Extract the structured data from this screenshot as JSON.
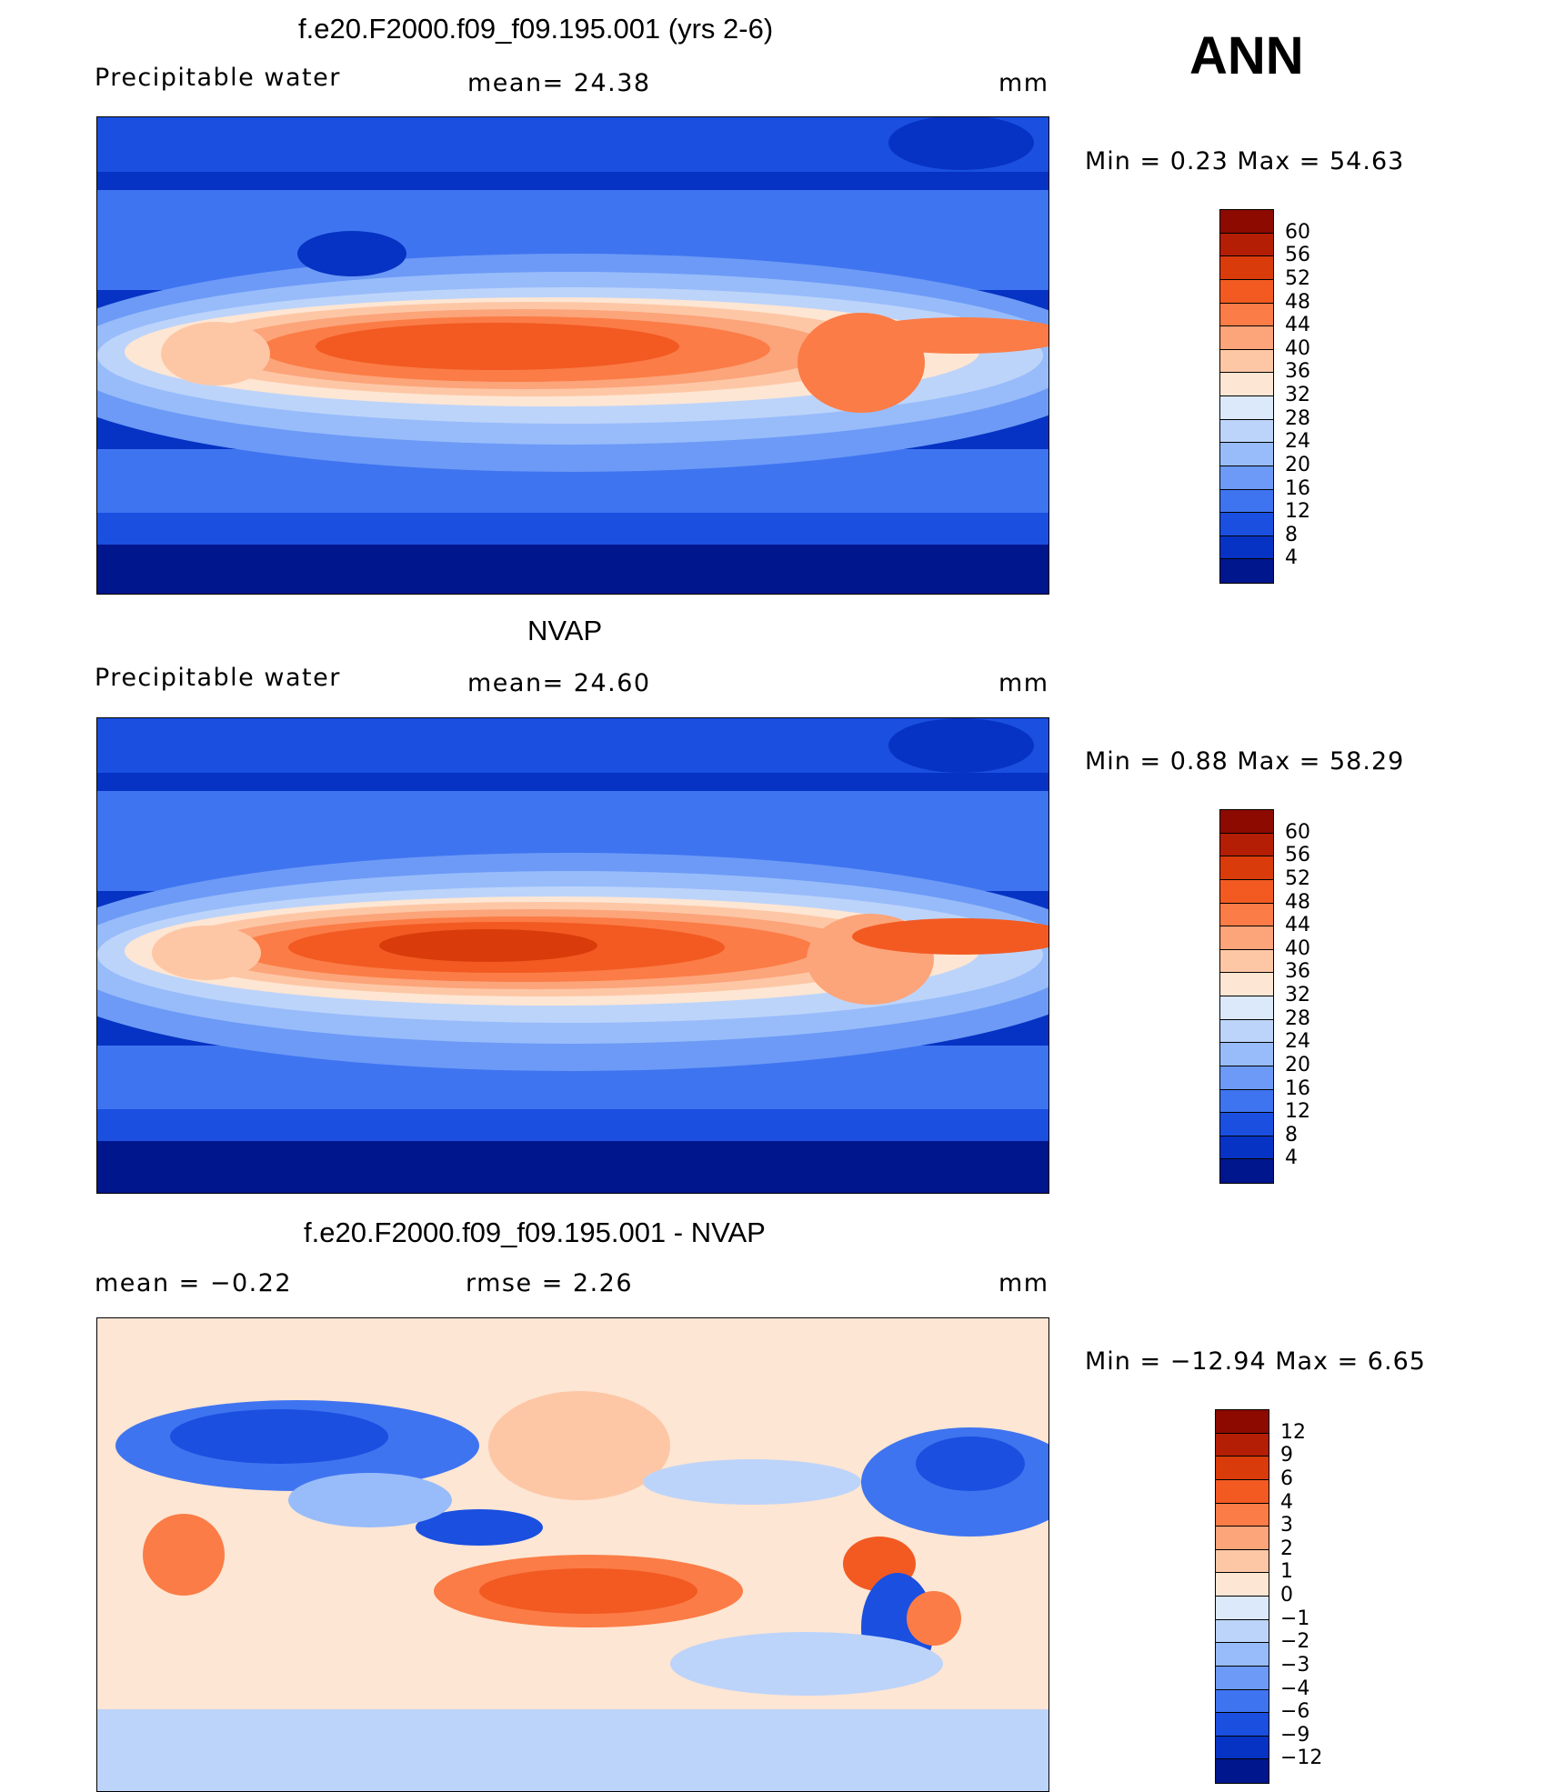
{
  "season": "ANN",
  "panels": [
    {
      "title": "f.e20.F2000.f09_f09.195.001 (yrs 2-6)",
      "left_label": "Precipitable  water",
      "mid_label": "mean=   24.38",
      "units": "mm",
      "minmax": "Min  =     0.23  Max  =    54.63",
      "colorbar": {
        "labels": [
          "60",
          "56",
          "52",
          "48",
          "44",
          "40",
          "36",
          "32",
          "28",
          "24",
          "20",
          "16",
          "12",
          "8",
          "4"
        ],
        "colors": [
          "#8c0a00",
          "#b41e04",
          "#d93b0a",
          "#f25a22",
          "#fb7c46",
          "#fca47a",
          "#fdc7a6",
          "#fde6d3",
          "#dbe9fa",
          "#bdd4fa",
          "#98bcfa",
          "#6c9af6",
          "#3f74f0",
          "#1a4fe0",
          "#0633c3",
          "#00168c"
        ]
      }
    },
    {
      "title": "NVAP",
      "left_label": "Precipitable  water",
      "mid_label": "mean=   24.60",
      "units": "mm",
      "minmax": "Min  =     0.88  Max  =    58.29",
      "colorbar": {
        "labels": [
          "60",
          "56",
          "52",
          "48",
          "44",
          "40",
          "36",
          "32",
          "28",
          "24",
          "20",
          "16",
          "12",
          "8",
          "4"
        ],
        "colors": [
          "#8c0a00",
          "#b41e04",
          "#d93b0a",
          "#f25a22",
          "#fb7c46",
          "#fca47a",
          "#fdc7a6",
          "#fde6d3",
          "#dbe9fa",
          "#bdd4fa",
          "#98bcfa",
          "#6c9af6",
          "#3f74f0",
          "#1a4fe0",
          "#0633c3",
          "#00168c"
        ]
      }
    },
    {
      "title": "f.e20.F2000.f09_f09.195.001 - NVAP",
      "left_label": "mean  =    −0.22",
      "mid_label": "rmse  =     2.26",
      "units": "mm",
      "minmax": "Min  = −12.94  Max  =     6.65",
      "colorbar": {
        "labels": [
          "12",
          "9",
          "6",
          "4",
          "3",
          "2",
          "1",
          "0",
          "−1",
          "−2",
          "−3",
          "−4",
          "−6",
          "−9",
          "−12"
        ],
        "colors": [
          "#8c0a00",
          "#b41e04",
          "#d93b0a",
          "#f25a22",
          "#fb7c46",
          "#fca47a",
          "#fdc7a6",
          "#fde6d3",
          "#dbe9fa",
          "#bdd4fa",
          "#98bcfa",
          "#6c9af6",
          "#3f74f0",
          "#1a4fe0",
          "#0633c3",
          "#00168c"
        ]
      }
    }
  ]
}
